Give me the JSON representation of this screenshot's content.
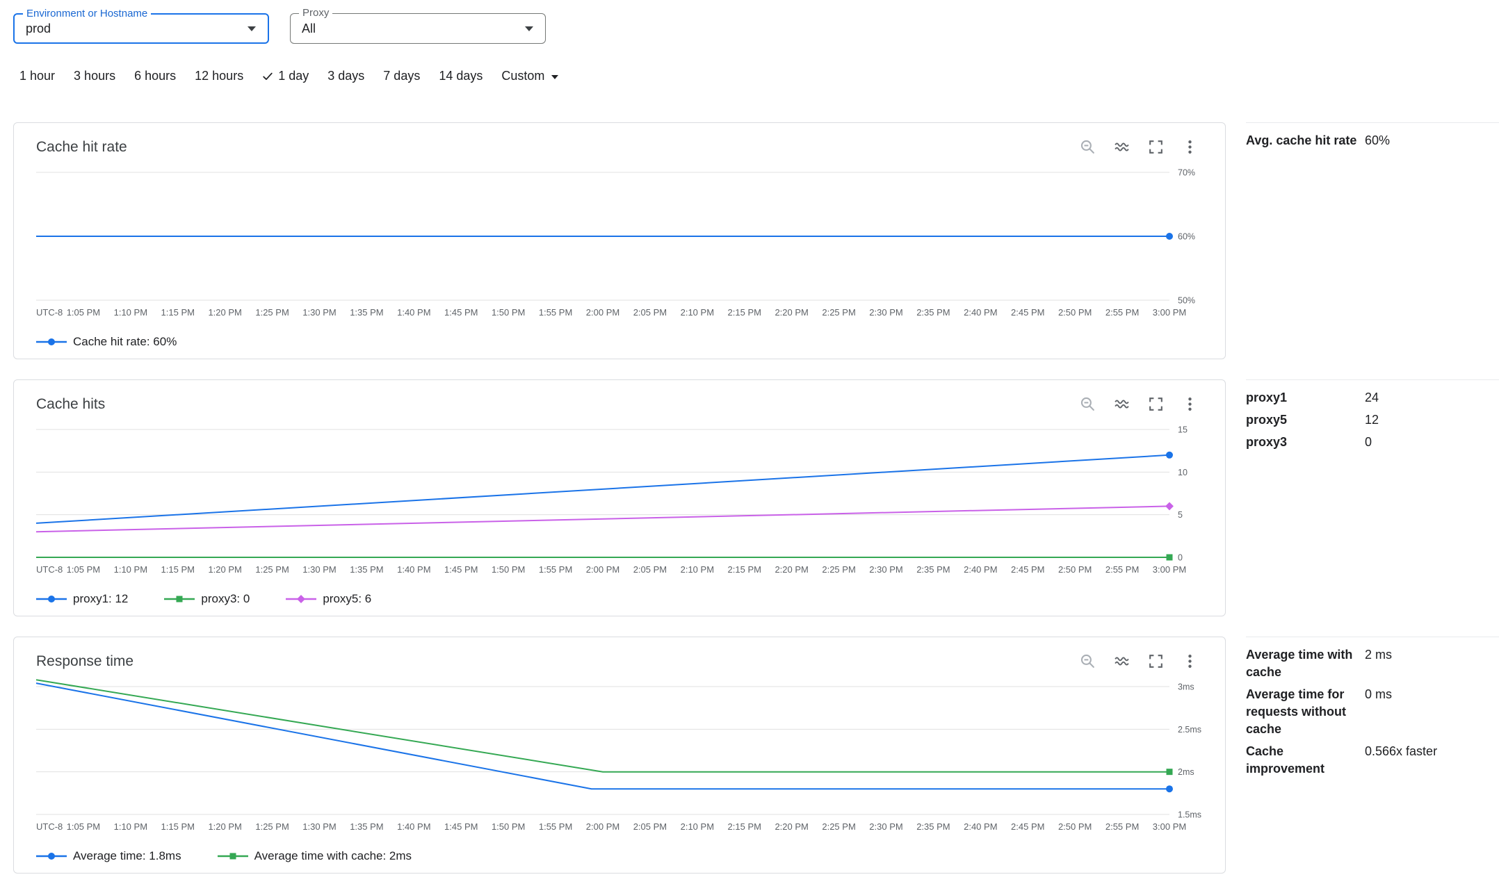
{
  "filters": {
    "environment": {
      "label": "Environment or Hostname",
      "value": "prod"
    },
    "proxy": {
      "label": "Proxy",
      "value": "All"
    }
  },
  "time_range": {
    "options": [
      {
        "label": "1 hour",
        "selected": false
      },
      {
        "label": "3 hours",
        "selected": false
      },
      {
        "label": "6 hours",
        "selected": false
      },
      {
        "label": "12 hours",
        "selected": false
      },
      {
        "label": "1 day",
        "selected": true
      },
      {
        "label": "3 days",
        "selected": false
      },
      {
        "label": "7 days",
        "selected": false
      },
      {
        "label": "14 days",
        "selected": false
      }
    ],
    "custom_label": "Custom"
  },
  "card_toolbar": {
    "icons": [
      "zoom-out-icon",
      "smooth-lines-icon",
      "fullscreen-icon",
      "more-options-icon"
    ]
  },
  "colors": {
    "blue": "#1a73e8",
    "green": "#34a853",
    "purple": "#c961e8",
    "grid": "#e0e0e0",
    "axis_label": "#5f6368"
  },
  "chart_data": [
    {
      "type": "line",
      "title": "Cache hit rate",
      "ylim": [
        50,
        70
      ],
      "yticks": [
        {
          "value": 70,
          "label": "70%"
        },
        {
          "value": 60,
          "label": "60%"
        },
        {
          "value": 50,
          "label": "50%"
        }
      ],
      "xticks": [
        "UTC-8",
        "1:05 PM",
        "1:10 PM",
        "1:15 PM",
        "1:20 PM",
        "1:25 PM",
        "1:30 PM",
        "1:35 PM",
        "1:40 PM",
        "1:45 PM",
        "1:50 PM",
        "1:55 PM",
        "2:00 PM",
        "2:05 PM",
        "2:10 PM",
        "2:15 PM",
        "2:20 PM",
        "2:25 PM",
        "2:30 PM",
        "2:35 PM",
        "2:40 PM",
        "2:45 PM",
        "2:50 PM",
        "2:55 PM",
        "3:00 PM"
      ],
      "series": [
        {
          "name": "Cache hit rate",
          "color": "#1a73e8",
          "marker": "circle",
          "points": [
            [
              0,
              60
            ],
            [
              1,
              60
            ]
          ]
        }
      ],
      "legend": [
        {
          "label": "Cache hit rate: 60%",
          "color": "#1a73e8",
          "marker": "circle"
        }
      ]
    },
    {
      "type": "line",
      "title": "Cache hits",
      "ylim": [
        0,
        15
      ],
      "yticks": [
        {
          "value": 15,
          "label": "15"
        },
        {
          "value": 10,
          "label": "10"
        },
        {
          "value": 5,
          "label": "5"
        },
        {
          "value": 0,
          "label": "0"
        }
      ],
      "xticks": [
        "UTC-8",
        "1:05 PM",
        "1:10 PM",
        "1:15 PM",
        "1:20 PM",
        "1:25 PM",
        "1:30 PM",
        "1:35 PM",
        "1:40 PM",
        "1:45 PM",
        "1:50 PM",
        "1:55 PM",
        "2:00 PM",
        "2:05 PM",
        "2:10 PM",
        "2:15 PM",
        "2:20 PM",
        "2:25 PM",
        "2:30 PM",
        "2:35 PM",
        "2:40 PM",
        "2:45 PM",
        "2:50 PM",
        "2:55 PM",
        "3:00 PM"
      ],
      "series": [
        {
          "name": "proxy1",
          "color": "#1a73e8",
          "marker": "circle",
          "points": [
            [
              0,
              4
            ],
            [
              1,
              12
            ]
          ]
        },
        {
          "name": "proxy3",
          "color": "#34a853",
          "marker": "square",
          "points": [
            [
              0,
              0
            ],
            [
              1,
              0
            ]
          ]
        },
        {
          "name": "proxy5",
          "color": "#c961e8",
          "marker": "diamond",
          "points": [
            [
              0,
              3
            ],
            [
              1,
              6
            ]
          ]
        }
      ],
      "legend": [
        {
          "label": "proxy1: 12",
          "color": "#1a73e8",
          "marker": "circle"
        },
        {
          "label": "proxy3: 0",
          "color": "#34a853",
          "marker": "square"
        },
        {
          "label": "proxy5: 6",
          "color": "#c961e8",
          "marker": "diamond"
        }
      ]
    },
    {
      "type": "line",
      "title": "Response time",
      "ylim": [
        1.5,
        3
      ],
      "yticks": [
        {
          "value": 3,
          "label": "3ms"
        },
        {
          "value": 2.5,
          "label": "2.5ms"
        },
        {
          "value": 2,
          "label": "2ms"
        },
        {
          "value": 1.5,
          "label": "1.5ms"
        }
      ],
      "xticks": [
        "UTC-8",
        "1:05 PM",
        "1:10 PM",
        "1:15 PM",
        "1:20 PM",
        "1:25 PM",
        "1:30 PM",
        "1:35 PM",
        "1:40 PM",
        "1:45 PM",
        "1:50 PM",
        "1:55 PM",
        "2:00 PM",
        "2:05 PM",
        "2:10 PM",
        "2:15 PM",
        "2:20 PM",
        "2:25 PM",
        "2:30 PM",
        "2:35 PM",
        "2:40 PM",
        "2:45 PM",
        "2:50 PM",
        "2:55 PM",
        "3:00 PM"
      ],
      "series": [
        {
          "name": "Average time",
          "color": "#1a73e8",
          "marker": "circle",
          "points": [
            [
              0,
              3.04
            ],
            [
              0.49,
              1.8
            ],
            [
              1,
              1.8
            ]
          ]
        },
        {
          "name": "Average time with cache",
          "color": "#34a853",
          "marker": "square",
          "points": [
            [
              0,
              3.08
            ],
            [
              0.5,
              2
            ],
            [
              1,
              2
            ]
          ]
        }
      ],
      "legend": [
        {
          "label": "Average time: 1.8ms",
          "color": "#1a73e8",
          "marker": "circle"
        },
        {
          "label": "Average time with cache: 2ms",
          "color": "#34a853",
          "marker": "square"
        }
      ]
    }
  ],
  "stats": [
    {
      "rows": [
        {
          "label": "Avg. cache hit rate",
          "value": "60%"
        }
      ]
    },
    {
      "rows": [
        {
          "label": "proxy1",
          "value": "24"
        },
        {
          "label": "proxy5",
          "value": "12"
        },
        {
          "label": "proxy3",
          "value": "0"
        }
      ]
    },
    {
      "rows": [
        {
          "label": "Average time with cache",
          "value": "2 ms"
        },
        {
          "label": "Average time for requests without cache",
          "value": "0 ms"
        },
        {
          "label": "Cache improvement",
          "value": "0.566x faster"
        }
      ]
    }
  ]
}
